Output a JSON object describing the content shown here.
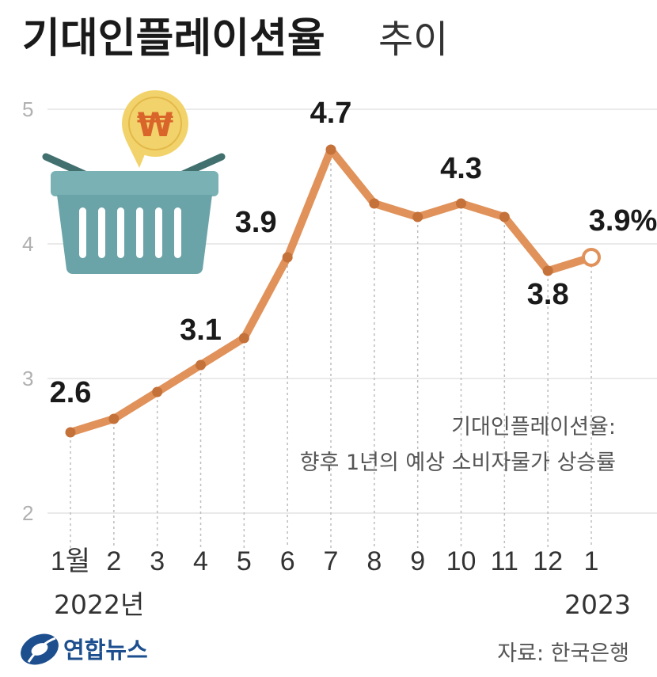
{
  "title": {
    "main": "기대인플레이션율",
    "sub": "추이"
  },
  "chart_data": {
    "type": "line",
    "title": "기대인플레이션율 추이",
    "x": [
      "1월",
      "2",
      "3",
      "4",
      "5",
      "6",
      "7",
      "8",
      "9",
      "10",
      "11",
      "12",
      "1"
    ],
    "x_years": [
      "2022년",
      "2023"
    ],
    "series": [
      {
        "name": "기대인플레이션율",
        "values": [
          2.6,
          2.7,
          2.9,
          3.1,
          3.3,
          3.9,
          4.7,
          4.3,
          4.2,
          4.3,
          4.2,
          3.8,
          3.9
        ]
      }
    ],
    "data_labels": [
      {
        "index": 0,
        "text": "2.6"
      },
      {
        "index": 3,
        "text": "3.1"
      },
      {
        "index": 5,
        "text": "3.9"
      },
      {
        "index": 6,
        "text": "4.7"
      },
      {
        "index": 9,
        "text": "4.3"
      },
      {
        "index": 11,
        "text": "3.8"
      },
      {
        "index": 12,
        "text": "3.9%"
      }
    ],
    "yticks": [
      "5",
      "4",
      "3",
      "2"
    ],
    "ylim": [
      2,
      5
    ],
    "grid": true,
    "colors": {
      "line": "#e0925a",
      "marker": "#c5713a",
      "last_marker_fill": "#ffffff",
      "grid": "#e3e3e3"
    }
  },
  "note": {
    "line1": "기대인플레이션율:",
    "line2": "향후 1년의 예상 소비자물가 상승률"
  },
  "logo": {
    "text": "연합뉴스",
    "color": "#1d4f8f"
  },
  "source": "자료: 한국은행",
  "illustration": {
    "coin_symbol": "₩",
    "coin_icon": "won-coin-icon",
    "basket_icon": "shopping-basket-icon",
    "coin_color": "#f2d36b",
    "basket_color": "#6aa3a8"
  }
}
